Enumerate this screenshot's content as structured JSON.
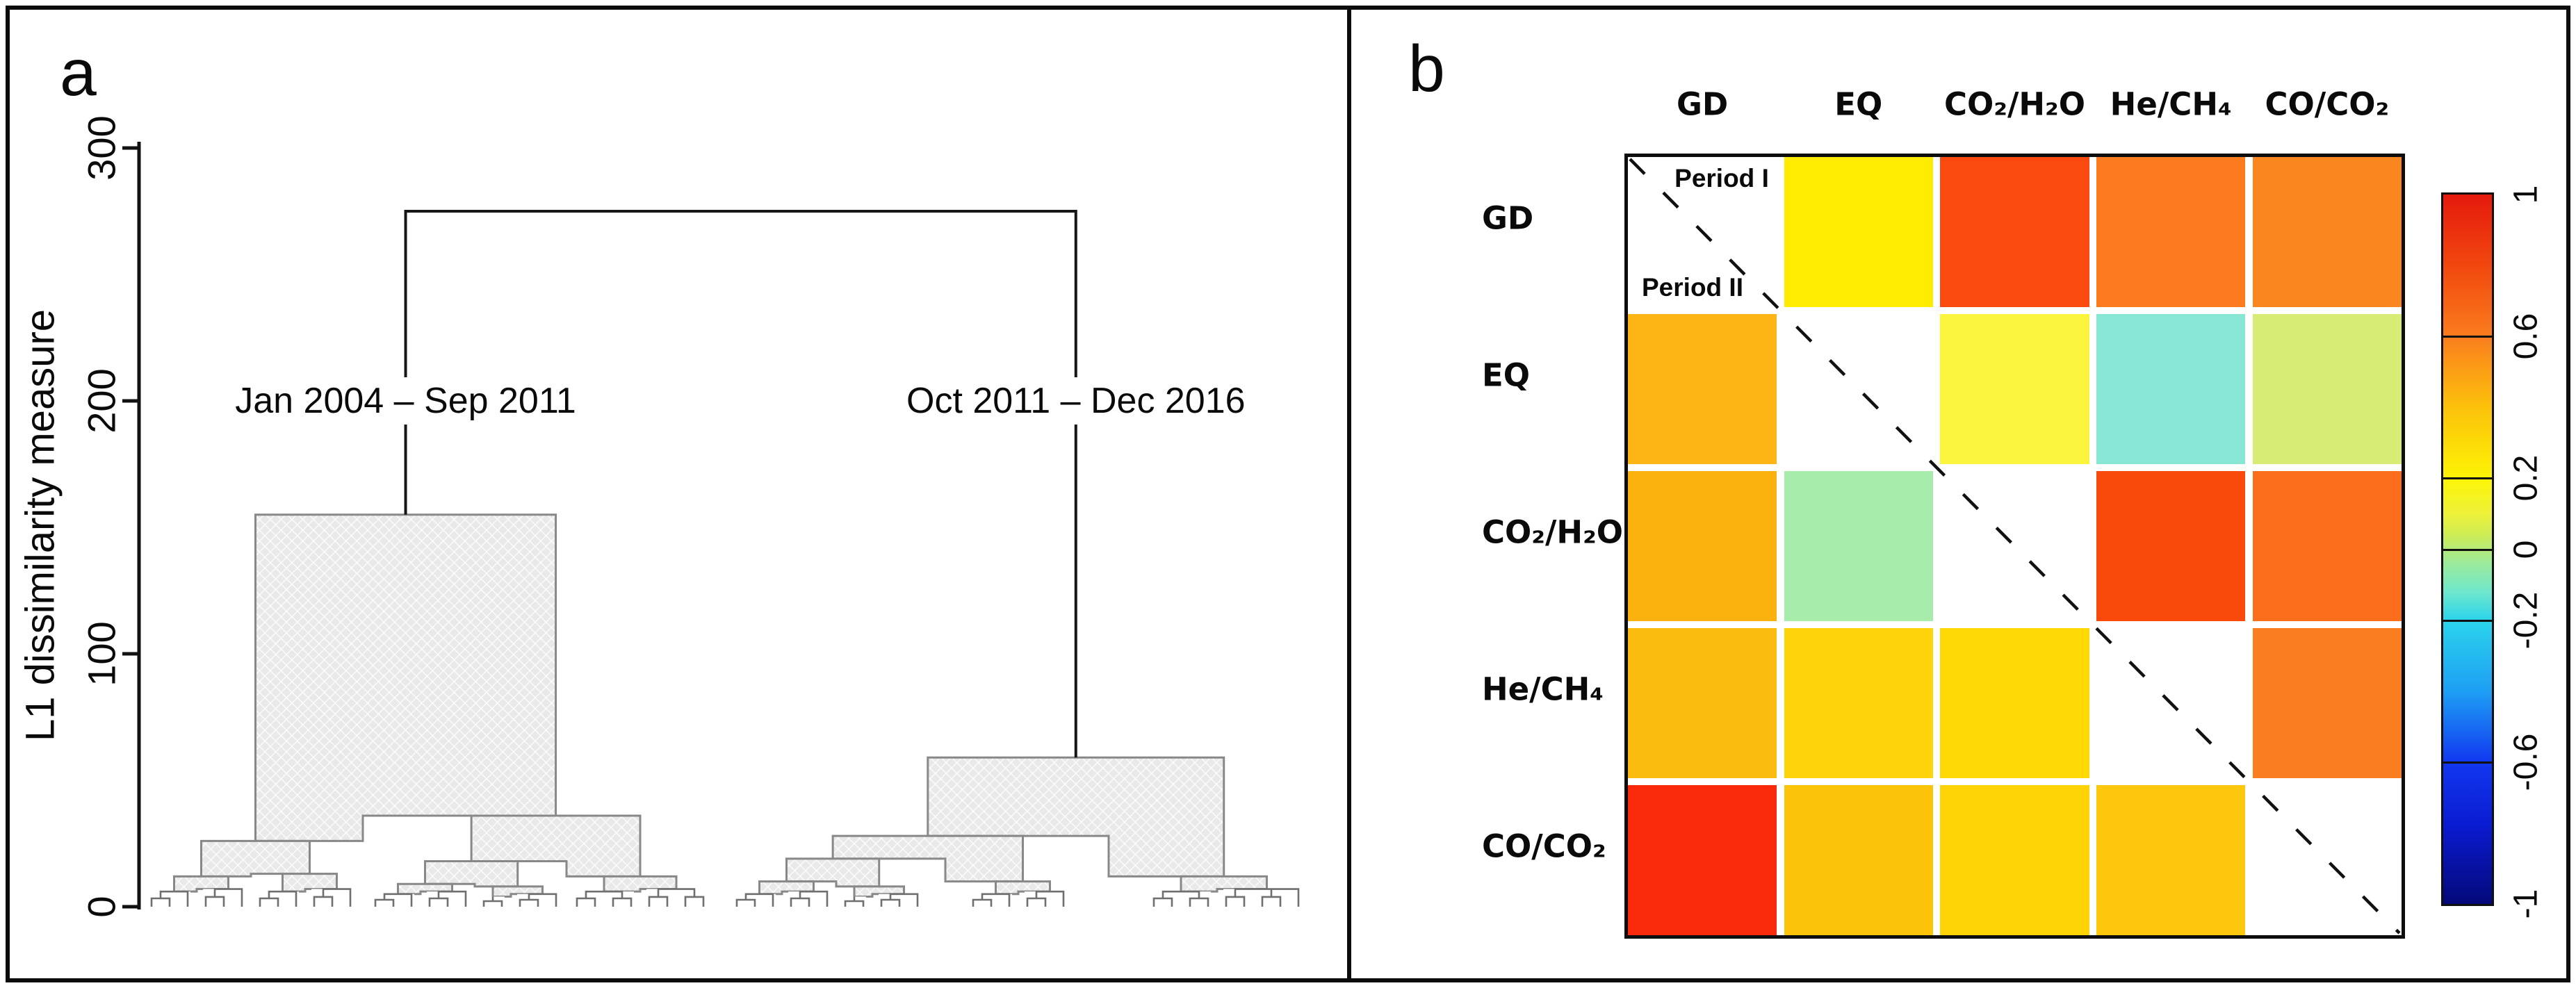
{
  "panels": {
    "a": {
      "label": "a"
    },
    "b": {
      "label": "b"
    }
  },
  "chart_data": [
    {
      "panel": "a",
      "type": "dendrogram",
      "ylabel": "L1 dissimilarity measure",
      "ylim": [
        0,
        300
      ],
      "yticks": [
        "0",
        "100",
        "200",
        "300"
      ],
      "root_join_height": 275,
      "clusters": [
        {
          "label": "Jan 2004 – Sep 2011",
          "top_height": 155,
          "label_at_height": 200
        },
        {
          "label": "Oct 2011 – Dec 2016",
          "top_height": 59,
          "label_at_height": 200
        }
      ],
      "tree": {
        "left": {
          "h": 155,
          "children": [
            {
              "h": 26,
              "children": [
                {
                  "h": 12,
                  "children": [
                    {
                      "twig": true,
                      "h": 6,
                      "leaves": [
                        218,
                        244,
                        270
                      ]
                    },
                    {
                      "twig": true,
                      "h": 7,
                      "leaves": [
                        296,
                        322,
                        348
                      ]
                    }
                  ]
                },
                {
                  "h": 13,
                  "children": [
                    {
                      "twig": true,
                      "h": 6,
                      "leaves": [
                        374,
                        400,
                        426
                      ]
                    },
                    {
                      "twig": true,
                      "h": 7,
                      "leaves": [
                        452,
                        478,
                        504
                      ]
                    }
                  ]
                }
              ]
            },
            {
              "h": 36,
              "children": [
                {
                  "h": 18,
                  "children": [
                    {
                      "h": 9,
                      "children": [
                        {
                          "twig": true,
                          "h": 5,
                          "leaves": [
                            540,
                            566,
                            592
                          ]
                        },
                        {
                          "twig": true,
                          "h": 6,
                          "leaves": [
                            618,
                            644,
                            670
                          ]
                        }
                      ]
                    },
                    {
                      "h": 8,
                      "children": [
                        {
                          "twig": true,
                          "h": 4,
                          "leaves": [
                            696,
                            722
                          ]
                        },
                        {
                          "twig": true,
                          "h": 5,
                          "leaves": [
                            748,
                            774,
                            800
                          ]
                        }
                      ]
                    }
                  ]
                },
                {
                  "h": 12,
                  "children": [
                    {
                      "twig": true,
                      "h": 6,
                      "leaves": [
                        830,
                        856,
                        882,
                        908
                      ]
                    },
                    {
                      "twig": true,
                      "h": 7,
                      "leaves": [
                        934,
                        960,
                        986,
                        1012
                      ]
                    }
                  ]
                }
              ]
            }
          ]
        },
        "right": {
          "h": 59,
          "children": [
            {
              "h": 28,
              "children": [
                {
                  "h": 19,
                  "children": [
                    {
                      "h": 10,
                      "children": [
                        {
                          "twig": true,
                          "h": 5,
                          "leaves": [
                            1060,
                            1086,
                            1112
                          ]
                        },
                        {
                          "twig": true,
                          "h": 6,
                          "leaves": [
                            1138,
                            1164,
                            1190
                          ]
                        }
                      ]
                    },
                    {
                      "h": 8,
                      "children": [
                        {
                          "twig": true,
                          "h": 4,
                          "leaves": [
                            1216,
                            1242
                          ]
                        },
                        {
                          "twig": true,
                          "h": 5,
                          "leaves": [
                            1268,
                            1294,
                            1320
                          ]
                        }
                      ]
                    }
                  ]
                },
                {
                  "h": 10,
                  "children": [
                    {
                      "twig": true,
                      "h": 5,
                      "leaves": [
                        1400,
                        1426,
                        1452
                      ]
                    },
                    {
                      "twig": true,
                      "h": 6,
                      "leaves": [
                        1478,
                        1504,
                        1530
                      ]
                    }
                  ]
                }
              ]
            },
            {
              "h": 12,
              "children": [
                {
                  "twig": true,
                  "h": 6,
                  "leaves": [
                    1660,
                    1686,
                    1712,
                    1738
                  ]
                },
                {
                  "twig": true,
                  "h": 7,
                  "leaves": [
                    1764,
                    1790,
                    1816,
                    1842,
                    1868
                  ]
                }
              ]
            }
          ]
        }
      }
    },
    {
      "panel": "b",
      "type": "heatmap",
      "variables": [
        "GD",
        "EQ",
        "CO₂/H₂O",
        "He/CH₄",
        "CO/CO₂"
      ],
      "upper_triangle": "Period I",
      "lower_triangle": "Period II",
      "diagonal": "dashed, values not shown",
      "cells": [
        {
          "r": 0,
          "c": 1,
          "row": "GD",
          "col": "EQ",
          "period": "I",
          "value": 0.3,
          "color": "#ffec00"
        },
        {
          "r": 0,
          "c": 2,
          "row": "GD",
          "col": "CO₂/H₂O",
          "period": "I",
          "value": 0.85,
          "color": "#fa4a10"
        },
        {
          "r": 0,
          "c": 3,
          "row": "GD",
          "col": "He/CH₄",
          "period": "I",
          "value": 0.7,
          "color": "#fb7b1e"
        },
        {
          "r": 0,
          "c": 4,
          "row": "GD",
          "col": "CO/CO₂",
          "period": "I",
          "value": 0.68,
          "color": "#fa861f"
        },
        {
          "r": 1,
          "c": 2,
          "row": "EQ",
          "col": "CO₂/H₂O",
          "period": "I",
          "value": 0.25,
          "color": "#faf53c"
        },
        {
          "r": 1,
          "c": 3,
          "row": "EQ",
          "col": "He/CH₄",
          "period": "I",
          "value": -0.15,
          "color": "#88e7d4"
        },
        {
          "r": 1,
          "c": 4,
          "row": "EQ",
          "col": "CO/CO₂",
          "period": "I",
          "value": 0.1,
          "color": "#d7ec74"
        },
        {
          "r": 2,
          "c": 3,
          "row": "CO₂/H₂O",
          "col": "He/CH₄",
          "period": "I",
          "value": 0.85,
          "color": "#fa4a0b"
        },
        {
          "r": 2,
          "c": 4,
          "row": "CO₂/H₂O",
          "col": "CO/CO₂",
          "period": "I",
          "value": 0.72,
          "color": "#fa6e1c"
        },
        {
          "r": 3,
          "c": 4,
          "row": "He/CH₄",
          "col": "CO/CO₂",
          "period": "I",
          "value": 0.7,
          "color": "#fa7e20"
        },
        {
          "r": 1,
          "c": 0,
          "row": "EQ",
          "col": "GD",
          "period": "II",
          "value": 0.55,
          "color": "#fcb515"
        },
        {
          "r": 2,
          "c": 0,
          "row": "CO₂/H₂O",
          "col": "GD",
          "period": "II",
          "value": 0.55,
          "color": "#fcb20e"
        },
        {
          "r": 2,
          "c": 1,
          "row": "CO₂/H₂O",
          "col": "EQ",
          "period": "II",
          "value": -0.05,
          "color": "#a8ecab"
        },
        {
          "r": 3,
          "c": 0,
          "row": "He/CH₄",
          "col": "GD",
          "period": "II",
          "value": 0.52,
          "color": "#fbbc10"
        },
        {
          "r": 3,
          "c": 1,
          "row": "He/CH₄",
          "col": "EQ",
          "period": "II",
          "value": 0.42,
          "color": "#fdd40a"
        },
        {
          "r": 3,
          "c": 2,
          "row": "He/CH₄",
          "col": "CO₂/H₂O",
          "period": "II",
          "value": 0.4,
          "color": "#fed903"
        },
        {
          "r": 4,
          "c": 0,
          "row": "CO/CO₂",
          "col": "GD",
          "period": "II",
          "value": 0.92,
          "color": "#f92a0c"
        },
        {
          "r": 4,
          "c": 1,
          "row": "CO/CO₂",
          "col": "EQ",
          "period": "II",
          "value": 0.47,
          "color": "#fcc408"
        },
        {
          "r": 4,
          "c": 2,
          "row": "CO/CO₂",
          "col": "CO₂/H₂O",
          "period": "II",
          "value": 0.41,
          "color": "#fdd305"
        },
        {
          "r": 4,
          "c": 3,
          "row": "CO/CO₂",
          "col": "He/CH₄",
          "period": "II",
          "value": 0.45,
          "color": "#fcc70d"
        }
      ],
      "colorbar": {
        "range": [
          -1,
          1
        ],
        "ticks": [
          "1",
          "0.6",
          "0.2",
          "0",
          "-0.2",
          "-0.6",
          "-1"
        ],
        "tick_values": [
          1,
          0.6,
          0.2,
          0,
          -0.2,
          -0.6,
          -1
        ],
        "divider_values": [
          0.6,
          0.2,
          0,
          -0.2,
          -0.6
        ],
        "stops": [
          {
            "v": 1,
            "c": "#e51a0d"
          },
          {
            "v": 0.8,
            "c": "#f1470e"
          },
          {
            "v": 0.6,
            "c": "#fa7d1e"
          },
          {
            "v": 0.4,
            "c": "#fcc10b"
          },
          {
            "v": 0.2,
            "c": "#fdf405"
          },
          {
            "v": 0.1,
            "c": "#eef23a"
          },
          {
            "v": 0.04,
            "c": "#cdec55"
          },
          {
            "v": -0.04,
            "c": "#9cea9c"
          },
          {
            "v": -0.12,
            "c": "#6fe7cc"
          },
          {
            "v": -0.2,
            "c": "#2bd4ec"
          },
          {
            "v": -0.4,
            "c": "#1e9ff4"
          },
          {
            "v": -0.6,
            "c": "#1138f0"
          },
          {
            "v": -0.78,
            "c": "#0a1bd0"
          },
          {
            "v": -1,
            "c": "#040979"
          }
        ]
      }
    }
  ]
}
